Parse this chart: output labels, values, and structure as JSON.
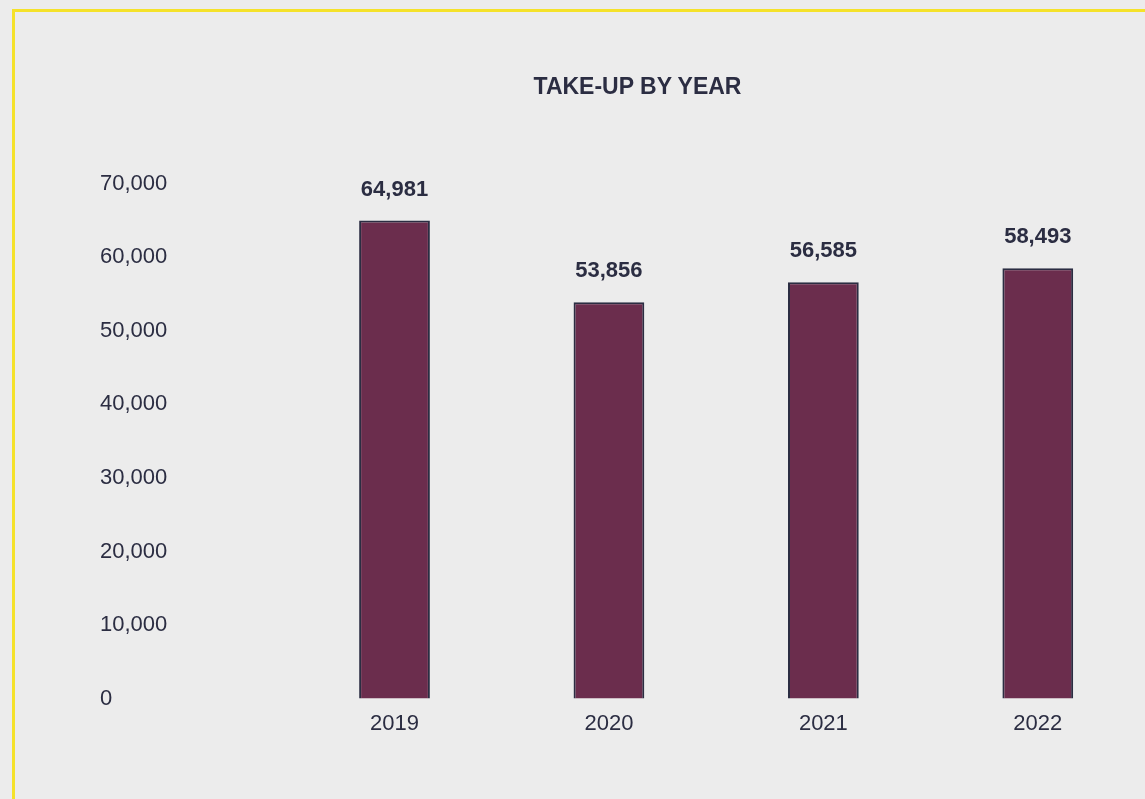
{
  "chart_data": {
    "type": "bar",
    "title": "TAKE-UP BY YEAR",
    "categories": [
      "2019",
      "2020",
      "2021",
      "2022"
    ],
    "values": [
      64981,
      53856,
      56585,
      58493
    ],
    "color": "#6b2d4d",
    "value_labels": [
      "64,981",
      "53,856",
      "56,585",
      "58,493"
    ],
    "ylim": [
      0,
      70000
    ],
    "yticks": [
      0,
      {
        "value": 10000,
        "label": "10,000"
      },
      {
        "value": 20000,
        "label": "20,000"
      },
      {
        "value": 30000,
        "label": "30,000"
      },
      {
        "value": 40000,
        "label": "40,000"
      },
      {
        "value": 50000,
        "label": "50,000"
      },
      {
        "value": 60000,
        "label": "60,000"
      },
      {
        "value": 70000,
        "label": "70,000"
      }
    ],
    "grid": false,
    "legend": false
  }
}
